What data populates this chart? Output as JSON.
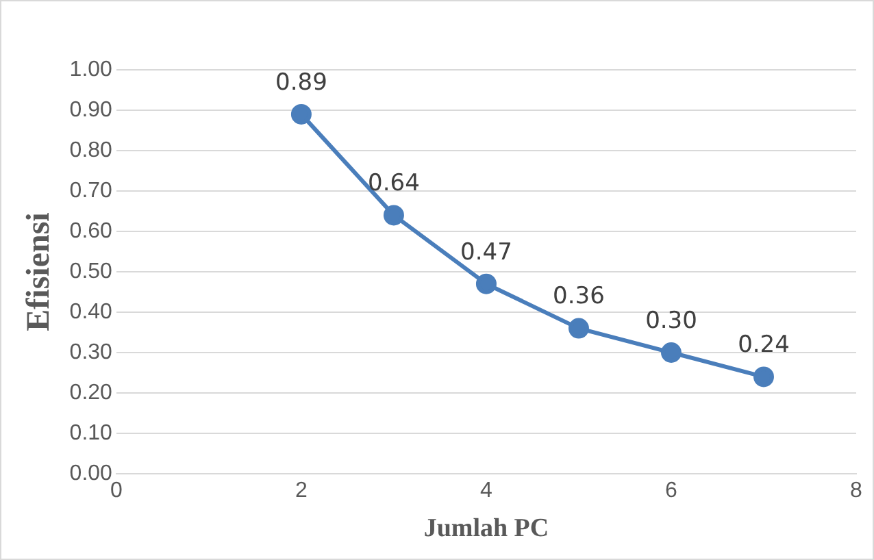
{
  "chart_data": {
    "type": "line",
    "xlabel": "Jumlah PC",
    "ylabel": "Efisiensi",
    "x": [
      2,
      3,
      4,
      5,
      6,
      7
    ],
    "series": [
      {
        "color": "#4a7ebb",
        "values": [
          0.89,
          0.64,
          0.47,
          0.36,
          0.3,
          0.24
        ],
        "value_labels": [
          "0.89",
          "0.64",
          "0.47",
          "0.36",
          "0.30",
          "0.24"
        ]
      }
    ],
    "xlim": [
      0,
      8
    ],
    "xticks": [
      0,
      2,
      4,
      6,
      8
    ],
    "ylim": [
      0,
      1
    ],
    "yticks": [
      {
        "value": 0,
        "label": "0.00"
      },
      {
        "value": 0.1,
        "label": "0.10"
      },
      {
        "value": 0.2,
        "label": "0.20"
      },
      {
        "value": 0.3,
        "label": "0.30"
      },
      {
        "value": 0.4,
        "label": "0.40"
      },
      {
        "value": 0.5,
        "label": "0.50"
      },
      {
        "value": 0.6,
        "label": "0.60"
      },
      {
        "value": 0.7,
        "label": "0.70"
      },
      {
        "value": 0.8,
        "label": "0.80"
      },
      {
        "value": 0.9,
        "label": "0.90"
      },
      {
        "value": 1,
        "label": "1.00"
      }
    ],
    "grid": "y",
    "legend": false,
    "marker": "circle",
    "line_style": "solid"
  }
}
